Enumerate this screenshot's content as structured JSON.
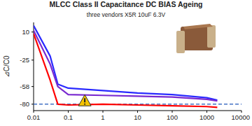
{
  "chart_data": {
    "type": "line",
    "title": "MLCC Class II Capacitance DC BIAS Ageing",
    "subtitle": "three vendors X5R 10uF 6.3V",
    "y_label": "⊿C/C0",
    "log": "x",
    "grid": false,
    "x": [
      0.01,
      0.03,
      0.05,
      0.1,
      1,
      10,
      100,
      1000,
      2000
    ],
    "series": [
      {
        "color": "#2a2aff",
        "values": [
          18,
          -20,
          -55,
          -60,
          -63,
          -66,
          -68,
          -72,
          -75
        ]
      },
      {
        "color": "#7a2ad0",
        "values": [
          12,
          -30,
          -58,
          -68,
          -69,
          -70,
          -71,
          -74,
          -76
        ]
      },
      {
        "color": "#ff0000",
        "values": [
          8,
          -50,
          -80,
          -81,
          -80,
          -81,
          -82,
          -83,
          -84
        ]
      }
    ],
    "reference_lines": [
      {
        "value": -80,
        "color": "#4472c4",
        "line_style": "dashed"
      }
    ],
    "xlim": [
      0.01,
      10000
    ],
    "xticks": [
      0.01,
      0.1,
      1,
      10,
      100,
      1000,
      10000
    ],
    "ylim": [
      -88,
      22
    ],
    "yticks": [
      10,
      -25,
      -58,
      -80
    ]
  }
}
